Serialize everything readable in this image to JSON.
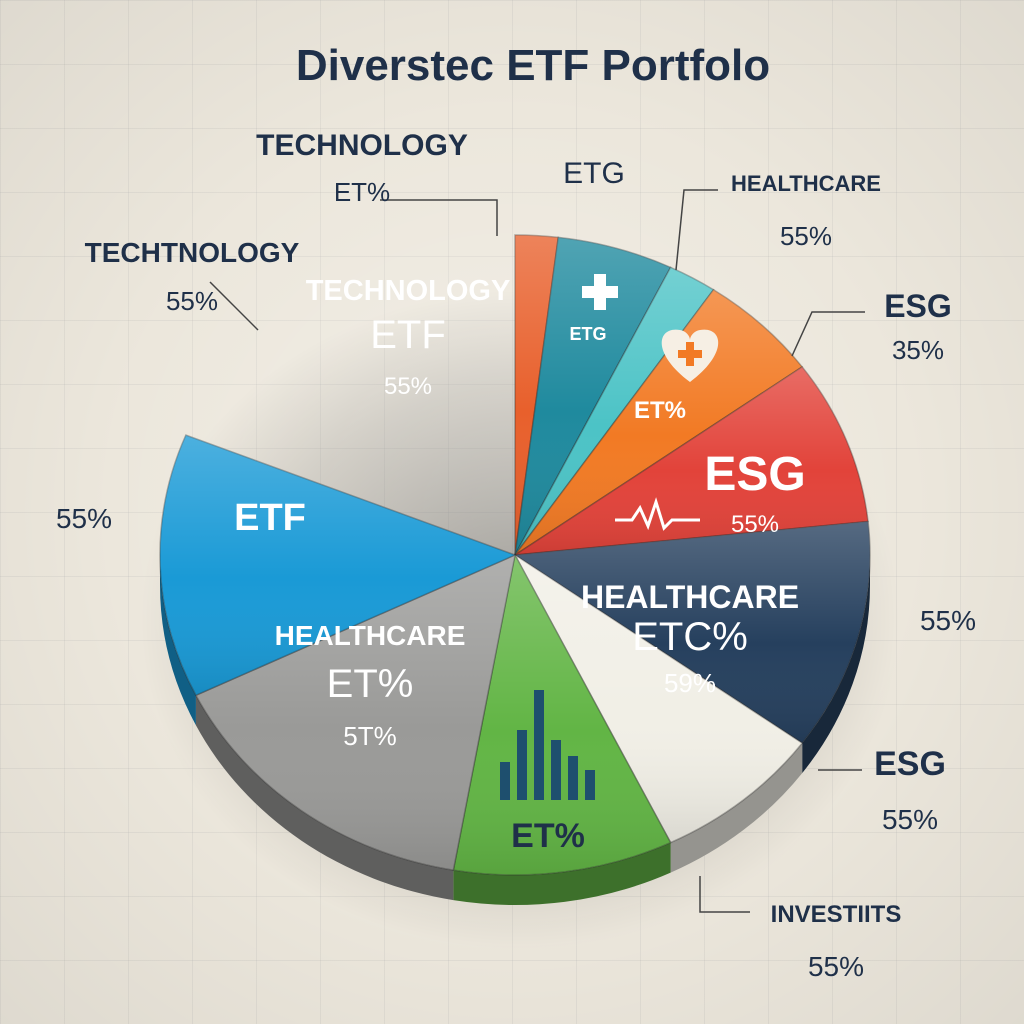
{
  "chart_data": {
    "type": "pie",
    "title": "Diverstec ETF Portfolo",
    "slices": [
      {
        "slice_label": "",
        "inside_lines": [],
        "color": "#e8602c"
      },
      {
        "slice_label": "",
        "inside_lines": [
          "ETG"
        ],
        "color": "#1f8a9e",
        "icon": "medical-cross-icon"
      },
      {
        "slice_label": "",
        "inside_lines": [],
        "color": "#4cc3c6"
      },
      {
        "slice_label": "",
        "inside_lines": [
          "ET%"
        ],
        "color": "#f27a24",
        "icon": "heart-cross-icon"
      },
      {
        "slice_label": "",
        "inside_lines": [
          "ESG",
          "55%"
        ],
        "color": "#e2433a",
        "icon": "pulse-line-icon"
      },
      {
        "slice_label": "",
        "inside_lines": [
          "HEALTHCARE",
          "ETC%",
          "59%"
        ],
        "color": "#26405e"
      },
      {
        "slice_label": "",
        "inside_lines": [
          "ET%"
        ],
        "color": "#f1efe6",
        "icon": "bar-chart-icon"
      },
      {
        "slice_label": "",
        "inside_lines": [
          "HEALTHCARE",
          "ET%",
          "5T%"
        ],
        "color": "#62b545"
      },
      {
        "slice_label": "",
        "inside_lines": [
          "ETF"
        ],
        "color": "#9a9a98"
      },
      {
        "slice_label": "",
        "inside_lines": [
          "TECHNOLOGY",
          "ETF",
          "55%"
        ],
        "color": "#1a9ad6"
      }
    ],
    "callouts": [
      {
        "lines": [
          "TECHNOLOGY",
          "ET%"
        ]
      },
      {
        "lines": [
          "ETG"
        ]
      },
      {
        "lines": [
          "HEALTHCARE",
          "55%"
        ]
      },
      {
        "lines": [
          "TECHTNOLOGY",
          "55%"
        ]
      },
      {
        "lines": [
          "ESG",
          "35%"
        ]
      },
      {
        "lines": [
          "55%"
        ]
      },
      {
        "lines": [
          "55%"
        ]
      },
      {
        "lines": [
          "ESG",
          "55%"
        ]
      },
      {
        "lines": [
          "INVESTIITS",
          "55%"
        ]
      }
    ],
    "legend": "none",
    "grid": true
  }
}
